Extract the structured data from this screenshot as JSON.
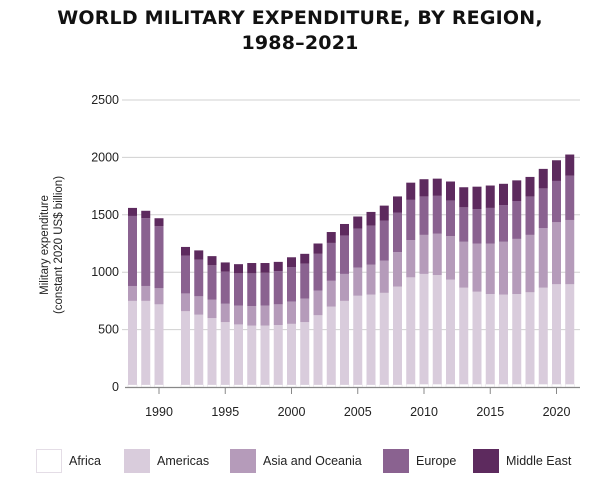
{
  "title_line1": "WORLD MILITARY EXPENDITURE, BY REGION,",
  "title_line2": "1988–2021",
  "colors": {
    "africa": "#ffffff",
    "americas": "#d9ccdc",
    "asia_oceania": "#b59bba",
    "europe": "#8a6290",
    "middle_east": "#5d2a5e",
    "grid": "#d0d0d0",
    "axis": "#888888"
  },
  "chart_data": {
    "type": "bar",
    "stacked": true,
    "title": "WORLD MILITARY EXPENDITURE, BY REGION, 1988–2021",
    "xlabel": "",
    "ylabel_line1": "Military expenditure",
    "ylabel_line2": "(constant 2020 US$ billion)",
    "ylim": [
      0,
      2500
    ],
    "yticks": [
      0,
      500,
      1000,
      1500,
      2000,
      2500
    ],
    "ytick_labels": [
      "0",
      "500",
      "1000",
      "1500",
      "2000",
      "2500"
    ],
    "xticks": [
      1990,
      1995,
      2000,
      2005,
      2010,
      2015,
      2020
    ],
    "xtick_labels": [
      "1990",
      "1995",
      "2000",
      "2005",
      "2010",
      "2015",
      "2020"
    ],
    "grid": true,
    "legend_position": "bottom",
    "x": [
      1988,
      1989,
      1990,
      1992,
      1993,
      1994,
      1995,
      1996,
      1997,
      1998,
      1999,
      2000,
      2001,
      2002,
      2003,
      2004,
      2005,
      2006,
      2007,
      2008,
      2009,
      2010,
      2011,
      2012,
      2013,
      2014,
      2015,
      2016,
      2017,
      2018,
      2019,
      2020,
      2021
    ],
    "series": [
      {
        "name": "Africa",
        "values": [
          20,
          20,
          20,
          20,
          20,
          20,
          20,
          20,
          20,
          20,
          20,
          20,
          20,
          20,
          20,
          20,
          20,
          20,
          20,
          20,
          25,
          25,
          25,
          25,
          25,
          25,
          25,
          25,
          25,
          25,
          25,
          25,
          25
        ]
      },
      {
        "name": "Americas",
        "values": [
          730,
          730,
          700,
          640,
          610,
          580,
          545,
          525,
          515,
          515,
          520,
          530,
          545,
          605,
          680,
          730,
          775,
          785,
          800,
          855,
          930,
          960,
          950,
          910,
          840,
          805,
          785,
          780,
          785,
          800,
          840,
          870,
          870
        ]
      },
      {
        "name": "Asia and Oceania",
        "values": [
          130,
          130,
          140,
          155,
          160,
          160,
          160,
          165,
          170,
          175,
          180,
          195,
          205,
          215,
          225,
          235,
          245,
          260,
          280,
          300,
          325,
          340,
          360,
          380,
          400,
          420,
          440,
          460,
          480,
          500,
          520,
          540,
          560
        ]
      },
      {
        "name": "Europe",
        "values": [
          610,
          590,
          540,
          330,
          320,
          300,
          280,
          280,
          285,
          285,
          290,
          300,
          305,
          320,
          330,
          335,
          340,
          340,
          350,
          345,
          350,
          335,
          330,
          310,
          300,
          300,
          310,
          320,
          330,
          335,
          345,
          360,
          385
        ]
      },
      {
        "name": "Middle East",
        "values": [
          70,
          65,
          70,
          75,
          80,
          80,
          80,
          80,
          90,
          85,
          80,
          85,
          85,
          90,
          95,
          100,
          105,
          120,
          130,
          140,
          150,
          150,
          150,
          165,
          175,
          195,
          195,
          185,
          180,
          170,
          170,
          180,
          185
        ]
      }
    ]
  }
}
